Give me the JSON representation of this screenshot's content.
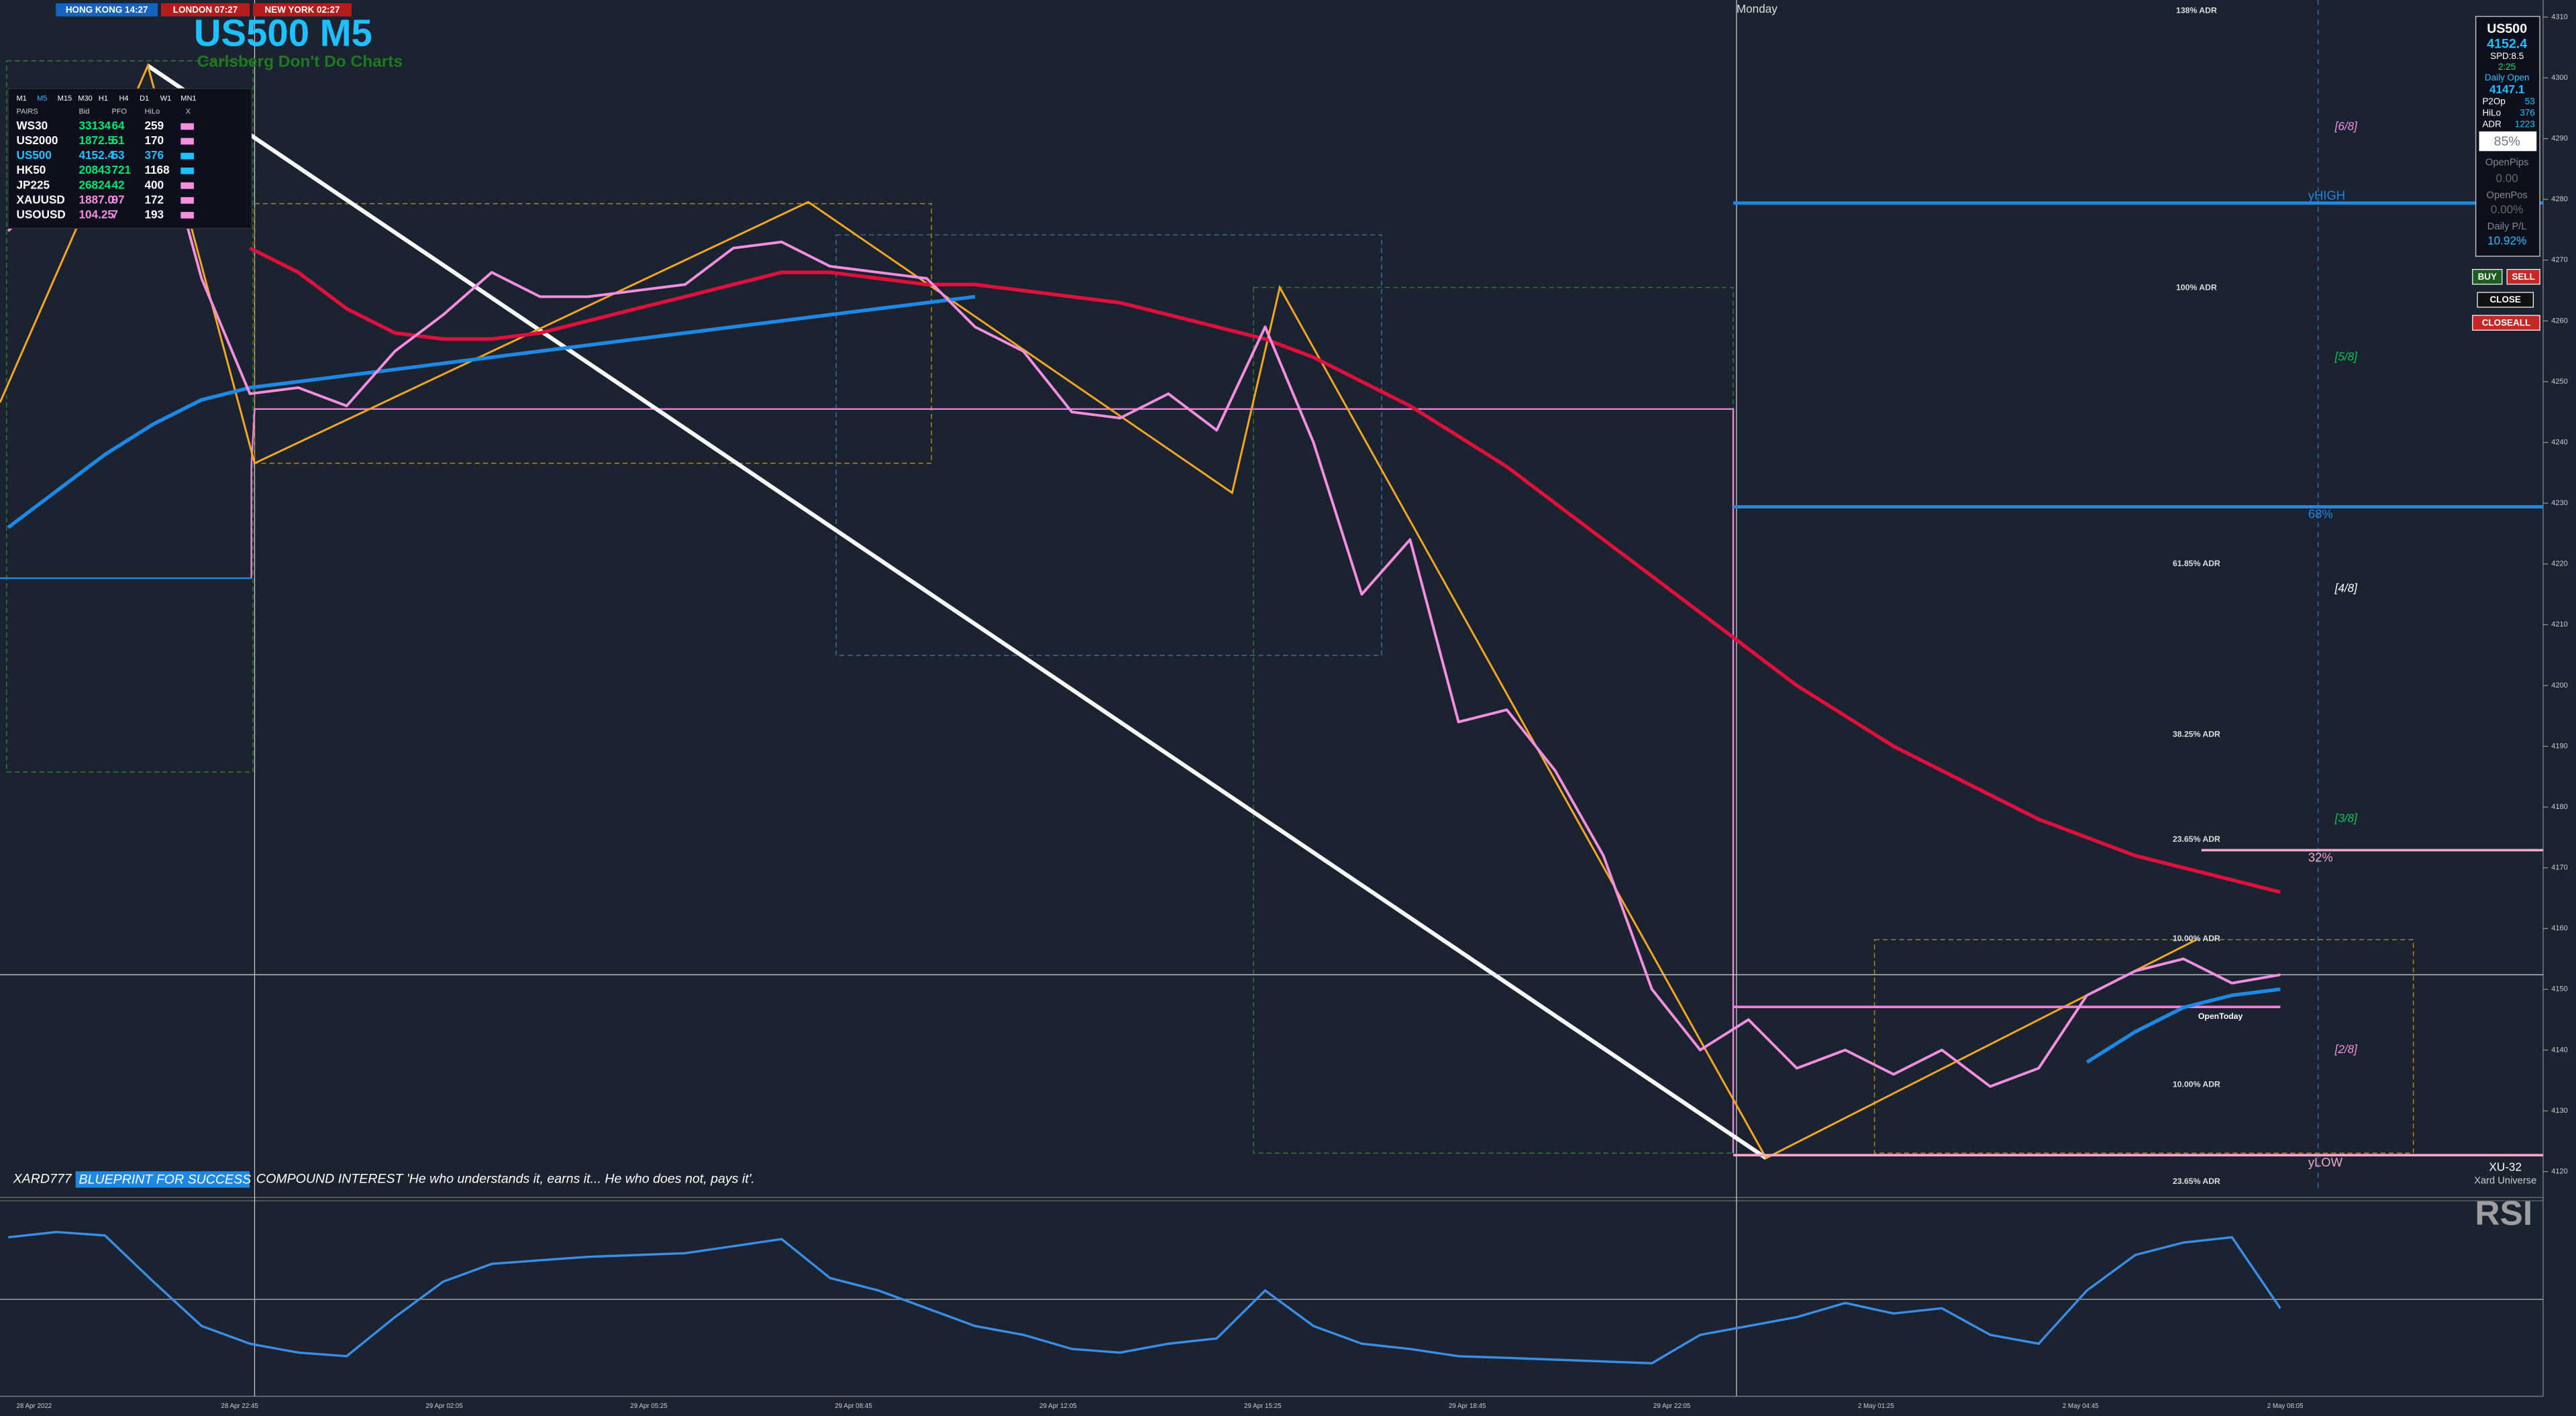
{
  "sessions": [
    "HONG KONG 14:27",
    "LONDON 07:27",
    "NEW YORK 02:27"
  ],
  "title": "US500 M5",
  "subtitle": "Carlsberg Don't Do Charts",
  "scanner": {
    "timeframes": [
      "M1",
      "M5",
      "M15",
      "M30",
      "H1",
      "H4",
      "D1",
      "W1",
      "MN1"
    ],
    "columns": [
      "PAIRS",
      "Bid",
      "PFO",
      "HiLo",
      "X"
    ],
    "rows": [
      [
        "WS30",
        "33134",
        "64",
        "259"
      ],
      [
        "US2000",
        "1872.5",
        "51",
        "170"
      ],
      [
        "US500",
        "4152.4",
        "53",
        "376"
      ],
      [
        "HK50",
        "20843",
        "721",
        "1168"
      ],
      [
        "JP225",
        "26824",
        "42",
        "400"
      ],
      [
        "XAUUSD",
        "1887.0",
        "97",
        "172"
      ],
      [
        "USOUSD",
        "104.25",
        "7",
        "193"
      ]
    ]
  },
  "day_label": "Monday",
  "adr_levels": [
    {
      "label": "138% ADR",
      "value": 4311
    },
    {
      "label": "100% ADR",
      "value": 4265.4
    },
    {
      "label": "61.85% ADR",
      "value": 4220
    },
    {
      "label": "38.25% ADR",
      "value": 4191.9
    },
    {
      "label": "23.65% ADR",
      "value": 4174.6
    },
    {
      "label": "10.00% ADR",
      "value": 4158.3
    },
    {
      "label": "10.00% ADR",
      "value": 4134.3
    },
    {
      "label": "23.65% ADR",
      "value": 4118.3
    }
  ],
  "murray_levels": [
    {
      "label": "[6/8]",
      "value": 4291.9
    },
    {
      "label": "[5/8]",
      "value": 4254
    },
    {
      "label": "[4/8]",
      "value": 4215.9
    },
    {
      "label": "[3/8]",
      "value": 4178
    },
    {
      "label": "[2/8]",
      "value": 4140
    }
  ],
  "levels": [
    {
      "label": "yHIGH",
      "value": 4279.4,
      "color": "#1e88e5"
    },
    {
      "label": "68%",
      "value": 4229.4,
      "color": "#1e88e5"
    },
    {
      "label": "32%",
      "value": 4172.9,
      "color": "#f4a6c8"
    },
    {
      "label": "yLOW",
      "value": 4122.7,
      "color": "#f4a6c8"
    },
    {
      "label": "OpenToday",
      "value": 4147.1,
      "color": "#f080d8"
    }
  ],
  "footer": {
    "author": "XARD777",
    "badge": "BLUEPRINT FOR SUCCESS",
    "quote": "COMPOUND INTEREST  'He who understands it, earns it... He who does not, pays it'."
  },
  "brand": [
    "XU-32",
    "Xard Universe"
  ],
  "rsi_label": "RSI",
  "info_panel": {
    "symbol": "US500",
    "price": "4152.4",
    "spread": "SPD:8.5",
    "timer": "2:25",
    "daily_open_label": "Daily Open",
    "daily_open": "4147.1",
    "stats": [
      [
        "P2Op",
        "53"
      ],
      [
        "HiLo",
        "376"
      ],
      [
        "ADR",
        "1223"
      ]
    ],
    "percent": "85%",
    "open_pips": [
      "OpenPips",
      "0.00"
    ],
    "open_pos": [
      "OpenPos",
      "0.00%"
    ],
    "daily_pl": [
      "Daily P/L",
      "10.92%"
    ]
  },
  "buttons": [
    "BUY",
    "SELL",
    "CLOSE",
    "CLOSEALL"
  ],
  "chart": {
    "type": "line",
    "time_labels": [
      "28 Apr 2022",
      "28 Apr 22:45",
      "29 Apr 02:05",
      "29 Apr 05:25",
      "29 Apr 08:45",
      "29 Apr 12:05",
      "29 Apr 15:25",
      "29 Apr 18:45",
      "29 Apr 22:05",
      "2 May 01:25",
      "2 May 04:45",
      "2 May 08:05"
    ],
    "ylim": [
      4116,
      4312
    ],
    "yticks": [
      4120,
      4130,
      4140,
      4150,
      4160,
      4170,
      4180,
      4190,
      4200,
      4210,
      4220,
      4230,
      4240,
      4250,
      4260,
      4270,
      4280,
      4290,
      4300,
      4310
    ],
    "price_line": 4152.4,
    "series": [
      {
        "color": "#f48fe0",
        "values": [
          4274.8,
          4283,
          4294,
          4296,
          4267,
          4248,
          4249,
          4246,
          4255,
          4261,
          4268,
          4264,
          4264,
          4265,
          4266,
          4272,
          4273,
          4269,
          4268,
          4267,
          4259,
          4255,
          4245,
          4244,
          4248,
          4242,
          4259,
          4240,
          4215,
          4224,
          4194,
          4196,
          4186,
          4172,
          4150,
          4140,
          4145,
          4137,
          4140,
          4136,
          4140,
          4134,
          4137,
          4149,
          4153,
          4155,
          4151,
          4152.4
        ]
      },
      {
        "color": "#e0103c",
        "values": [
          null,
          null,
          null,
          null,
          null,
          4272,
          4268,
          4262,
          4258,
          4257,
          4257,
          4258,
          4260,
          4262,
          4264,
          4266,
          4268,
          4268,
          4267,
          4266,
          4266,
          4265,
          4264,
          4263,
          4261,
          4259,
          4257,
          4254,
          4250,
          4246,
          4241,
          4236,
          4230,
          4224,
          4218,
          4212,
          4206,
          4200,
          4195,
          4190,
          4186,
          4182,
          4178,
          4175,
          4172,
          4170,
          4168,
          4166
        ]
      },
      {
        "color": "#1e88e5",
        "values": [
          4226,
          4232,
          4238,
          4243,
          4247,
          4249,
          4250,
          4251,
          4252,
          4253,
          4254,
          4255,
          4256,
          4257,
          4258,
          4259,
          4260,
          4261,
          4262,
          4263,
          4264,
          null,
          null,
          null,
          null,
          null,
          null,
          null,
          null,
          null,
          null,
          null,
          null,
          null,
          null,
          null,
          null,
          null,
          null,
          null,
          null,
          null,
          null,
          4138,
          4143,
          4147,
          4149,
          4150
        ]
      }
    ]
  },
  "rsi": {
    "ylim": [
      0,
      100
    ],
    "color": "#3a8ee6",
    "values": [
      85,
      88,
      86,
      60,
      35,
      25,
      20,
      18,
      40,
      60,
      70,
      72,
      74,
      75,
      76,
      80,
      84,
      62,
      55,
      45,
      35,
      30,
      22,
      20,
      25,
      28,
      55,
      35,
      25,
      22,
      18,
      17,
      16,
      15,
      14,
      30,
      35,
      40,
      48,
      42,
      45,
      30,
      25,
      55,
      75,
      82,
      85,
      45
    ]
  }
}
